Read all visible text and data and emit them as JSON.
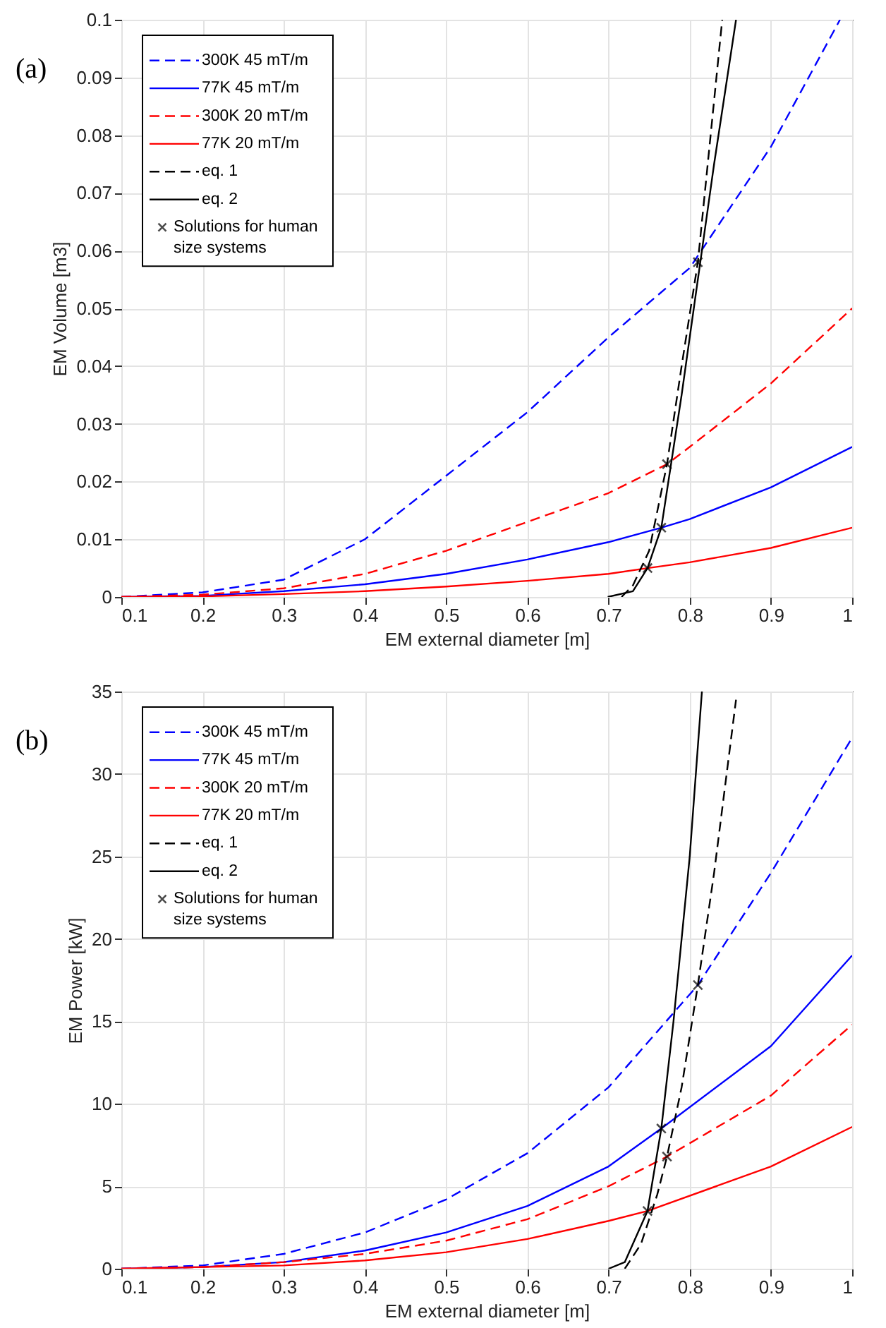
{
  "chart_data": [
    {
      "type": "line",
      "annotations": [
        "(a)"
      ],
      "xlabel": "EM external diameter [m]",
      "ylabel": "EM Volume [m3]",
      "xlim": [
        0.1,
        1
      ],
      "xticks": [
        0.1,
        0.2,
        0.3,
        0.4,
        0.5,
        0.6,
        0.7,
        0.8,
        0.9,
        1
      ],
      "ylim": [
        0,
        0.1
      ],
      "yticks": [
        0,
        0.01,
        0.02,
        0.03,
        0.04,
        0.05,
        0.06,
        0.07,
        0.08,
        0.09,
        0.1
      ],
      "grid": true,
      "legend": "top left",
      "series": [
        {
          "name": "300K 45 mT/m",
          "color": "#0000ff",
          "line_style": "dashed",
          "x": [
            0.1,
            0.2,
            0.3,
            0.4,
            0.5,
            0.6,
            0.7,
            0.8,
            0.9,
            0.985
          ],
          "values": [
            0,
            0.0008,
            0.003,
            0.01,
            0.021,
            0.032,
            0.045,
            0.057,
            0.078,
            0.1
          ]
        },
        {
          "name": "77K 45 mT/m",
          "color": "#0000ff",
          "line_style": "solid",
          "x": [
            0.1,
            0.2,
            0.3,
            0.4,
            0.5,
            0.6,
            0.7,
            0.765,
            0.8,
            0.9,
            1
          ],
          "values": [
            0,
            0.0002,
            0.001,
            0.0022,
            0.004,
            0.0065,
            0.0095,
            0.012,
            0.0135,
            0.019,
            0.026
          ]
        },
        {
          "name": "300K 20 mT/m",
          "color": "#ff0000",
          "line_style": "dashed",
          "x": [
            0.1,
            0.2,
            0.3,
            0.4,
            0.5,
            0.6,
            0.7,
            0.772,
            0.8,
            0.9,
            1
          ],
          "values": [
            0,
            0.0004,
            0.0015,
            0.004,
            0.008,
            0.013,
            0.018,
            0.023,
            0.026,
            0.037,
            0.05
          ]
        },
        {
          "name": "77K 20 mT/m",
          "color": "#ff0000",
          "line_style": "solid",
          "x": [
            0.1,
            0.2,
            0.3,
            0.4,
            0.5,
            0.6,
            0.7,
            0.748,
            0.8,
            0.9,
            1
          ],
          "values": [
            0,
            0.0001,
            0.0005,
            0.001,
            0.0018,
            0.0028,
            0.004,
            0.005,
            0.006,
            0.0085,
            0.012
          ]
        },
        {
          "name": "eq. 1",
          "color": "#000000",
          "line_style": "dashed",
          "x": [
            0.716,
            0.73,
            0.75,
            0.772,
            0.79,
            0.81,
            0.84
          ],
          "values": [
            0,
            0.002,
            0.008,
            0.023,
            0.04,
            0.058,
            0.1
          ]
        },
        {
          "name": "eq. 2",
          "color": "#000000",
          "line_style": "solid",
          "x": [
            0.699,
            0.73,
            0.748,
            0.765,
            0.79,
            0.81,
            0.83,
            0.857
          ],
          "values": [
            0,
            0.001,
            0.005,
            0.012,
            0.035,
            0.055,
            0.075,
            0.1
          ]
        },
        {
          "name": "Solutions for human size systems",
          "type": "scatter",
          "marker": "cross",
          "color": "#000000",
          "x": [
            0.748,
            0.765,
            0.772,
            0.81
          ],
          "values": [
            0.005,
            0.012,
            0.023,
            0.058
          ]
        }
      ]
    },
    {
      "type": "line",
      "annotations": [
        "(b)"
      ],
      "xlabel": "EM external diameter [m]",
      "ylabel": "EM Power [kW]",
      "xlim": [
        0.1,
        1
      ],
      "xticks": [
        0.1,
        0.2,
        0.3,
        0.4,
        0.5,
        0.6,
        0.7,
        0.8,
        0.9,
        1
      ],
      "ylim": [
        0,
        35
      ],
      "yticks": [
        0,
        5,
        10,
        15,
        20,
        25,
        30,
        35
      ],
      "grid": true,
      "legend": "top left",
      "series": [
        {
          "name": "300K 45 mT/m",
          "color": "#0000ff",
          "line_style": "dashed",
          "x": [
            0.1,
            0.2,
            0.3,
            0.4,
            0.5,
            0.6,
            0.7,
            0.81,
            0.9,
            1
          ],
          "values": [
            0,
            0.2,
            0.9,
            2.2,
            4.2,
            7,
            11,
            17.2,
            24,
            32.2
          ]
        },
        {
          "name": "77K 45 mT/m",
          "color": "#0000ff",
          "line_style": "solid",
          "x": [
            0.1,
            0.2,
            0.3,
            0.4,
            0.5,
            0.6,
            0.7,
            0.765,
            0.9,
            1
          ],
          "values": [
            0,
            0.1,
            0.4,
            1.1,
            2.2,
            3.8,
            6.2,
            8.5,
            13.5,
            19
          ]
        },
        {
          "name": "300K 20 mT/m",
          "color": "#ff0000",
          "line_style": "dashed",
          "x": [
            0.1,
            0.2,
            0.3,
            0.4,
            0.5,
            0.6,
            0.7,
            0.772,
            0.9,
            1
          ],
          "values": [
            0,
            0.1,
            0.4,
            0.9,
            1.7,
            3,
            5,
            6.8,
            10.5,
            14.8
          ]
        },
        {
          "name": "77K 20 mT/m",
          "color": "#ff0000",
          "line_style": "solid",
          "x": [
            0.1,
            0.2,
            0.3,
            0.4,
            0.5,
            0.6,
            0.7,
            0.748,
            0.9,
            1
          ],
          "values": [
            0,
            0.1,
            0.2,
            0.5,
            1,
            1.8,
            2.9,
            3.5,
            6.2,
            8.6
          ]
        },
        {
          "name": "eq. 1",
          "color": "#000000",
          "line_style": "dashed",
          "x": [
            0.72,
            0.74,
            0.76,
            0.772,
            0.79,
            0.81,
            0.83,
            0.857
          ],
          "values": [
            0,
            1.5,
            4.5,
            6.8,
            11,
            17.2,
            24,
            34.5
          ]
        },
        {
          "name": "eq. 2",
          "color": "#000000",
          "line_style": "solid",
          "x": [
            0.7,
            0.72,
            0.748,
            0.765,
            0.78,
            0.8,
            0.815
          ],
          "values": [
            0,
            0.4,
            3.5,
            8.5,
            15,
            25,
            35
          ]
        },
        {
          "name": "Solutions for human size systems",
          "type": "scatter",
          "marker": "cross",
          "color": "#000000",
          "x": [
            0.748,
            0.765,
            0.772,
            0.81
          ],
          "values": [
            3.5,
            8.5,
            6.8,
            17.2
          ]
        }
      ]
    }
  ]
}
